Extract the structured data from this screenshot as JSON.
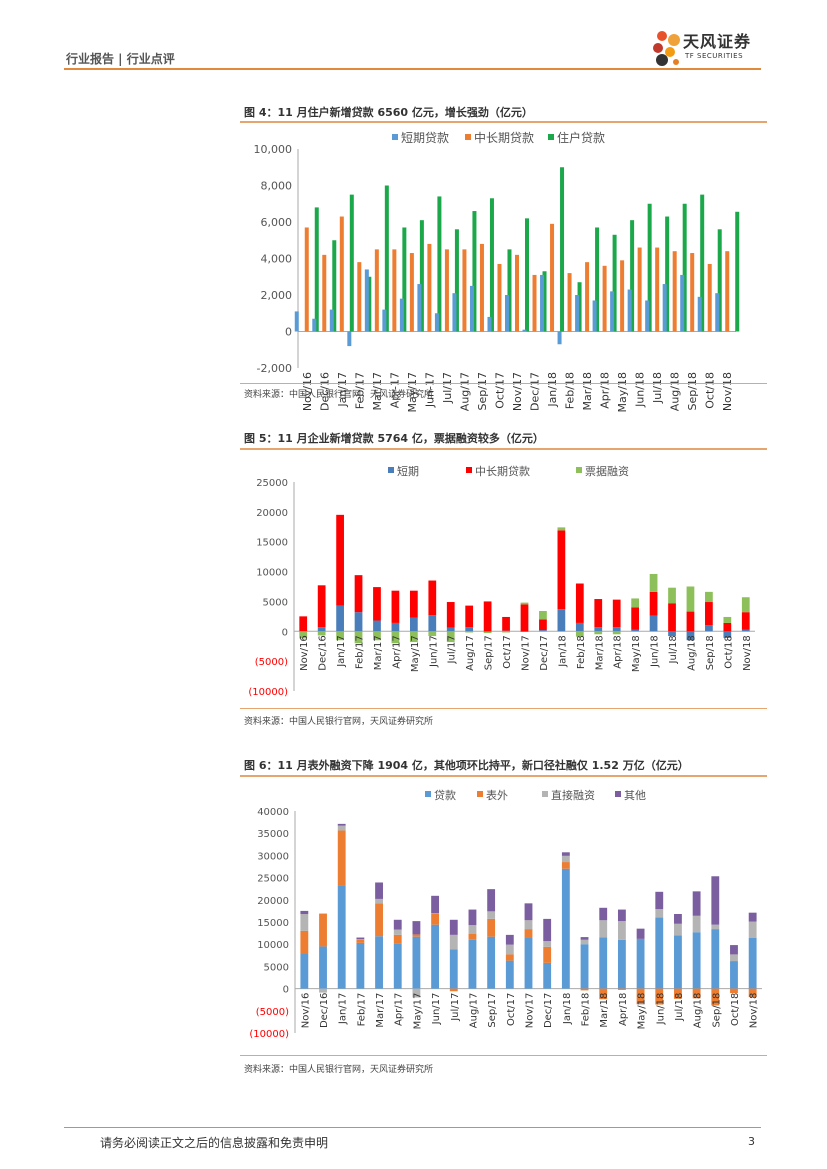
{
  "header": {
    "left_text": "行业报告 | 行业点评",
    "logo_cn": "天风证券",
    "logo_en": "TF SECURITIES",
    "logo_icon": "flower-logo-icon"
  },
  "colors": {
    "accent": "#e08a3c",
    "blue": "#5b9bd5",
    "orange": "#ed7d31",
    "green": "#1aa84a",
    "red": "#ff0000",
    "lightgreen": "#8dbf5a",
    "gray": "#b4b4b4",
    "purple": "#7b5e9f"
  },
  "figures": [
    {
      "title": "图 4：11 月住户新增贷款 6560 亿元，增长强劲（亿元）",
      "source": "资料来源：中国人民银行官网，天风证券研究所"
    },
    {
      "title": "图 5：11 月企业新增贷款 5764 亿，票据融资较多（亿元）",
      "source": "资料来源：中国人民银行官网，天风证券研究所"
    },
    {
      "title": "图 6：11 月表外融资下降 1904 亿，其他项环比持平，新口径社融仅 1.52 万亿（亿元）",
      "source": "资料来源：中国人民银行官网，天风证券研究所"
    }
  ],
  "footer": {
    "disclaimer": "请务必阅读正文之后的信息披露和免责申明",
    "page": "3"
  },
  "chart_data": [
    {
      "type": "bar",
      "title": "图 4：11 月住户新增贷款 6560 亿元，增长强劲（亿元）",
      "categories": [
        "Nov/16",
        "Dec/16",
        "Jan/17",
        "Feb/17",
        "Mar/17",
        "Apr-17",
        "May/17",
        "Jun-17",
        "Jul/17",
        "Aug/17",
        "Sep/17",
        "Oct/17",
        "Nov/17",
        "Dec/17",
        "Jan/18",
        "Feb/18",
        "Mar/18",
        "Apr/18",
        "May/18",
        "Jun/18",
        "Jul/18",
        "Aug/18",
        "Sep/18",
        "Oct/18",
        "Nov/18"
      ],
      "series": [
        {
          "name": "短期贷款",
          "values": [
            1100,
            700,
            1200,
            -800,
            3400,
            1200,
            1800,
            2600,
            1000,
            2100,
            2500,
            800,
            2000,
            100,
            3100,
            -700,
            2000,
            1700,
            2200,
            2300,
            1700,
            2600,
            3100,
            1900,
            2100
          ]
        },
        {
          "name": "中长期贷款",
          "values": [
            5700,
            4200,
            6300,
            3800,
            4500,
            4500,
            4300,
            4800,
            4500,
            4500,
            4800,
            3700,
            4200,
            3100,
            5900,
            3200,
            3800,
            3600,
            3900,
            4600,
            4600,
            4400,
            4300,
            3700,
            4400
          ]
        },
        {
          "name": "住户贷款",
          "values": [
            6800,
            5000,
            7500,
            3000,
            8000,
            5700,
            6100,
            7400,
            5600,
            6600,
            7300,
            4500,
            6200,
            3300,
            9000,
            2700,
            5700,
            5300,
            6100,
            7000,
            6300,
            7000,
            7500,
            5600,
            6560
          ]
        }
      ],
      "ylim": [
        -2000,
        10000
      ],
      "yticks": [
        "10,000",
        "8,000",
        "6,000",
        "4,000",
        "2,000",
        "0",
        "-2,000"
      ],
      "legend": "top-center"
    },
    {
      "type": "bar",
      "title": "图 5：11 月企业新增贷款 5764 亿，票据融资较多（亿元）",
      "categories": [
        "Nov/16",
        "Dec/16",
        "Jan/17",
        "Feb/17",
        "Mar/17",
        "Apr/17",
        "May/17",
        "Jun/17",
        "Jul/17",
        "Aug/17",
        "Sep/17",
        "Oct/17",
        "Nov/17",
        "Dec/17",
        "Jan/18",
        "Feb/18",
        "Mar/18",
        "Apr/18",
        "May/18",
        "Jun/18",
        "Jul/18",
        "Aug/18",
        "Sep/18",
        "Oct/18",
        "Nov/18"
      ],
      "series": [
        {
          "name": "短期",
          "values": [
            0,
            700,
            4300,
            3200,
            1800,
            1400,
            2300,
            2700,
            600,
            700,
            -100,
            100,
            -100,
            200,
            3700,
            1400,
            700,
            700,
            300,
            2600,
            -800,
            -1500,
            1000,
            -1100,
            300
          ]
        },
        {
          "name": "中长期贷款",
          "values": [
            2500,
            7000,
            15200,
            6200,
            5600,
            5400,
            4500,
            5800,
            4300,
            3600,
            5000,
            2300,
            4500,
            1800,
            13200,
            6600,
            4700,
            4600,
            3700,
            4000,
            4700,
            3300,
            3900,
            1400,
            2900
          ]
        },
        {
          "name": "票据融资",
          "values": [
            -1200,
            -700,
            -1500,
            -2000,
            -1500,
            -2000,
            -1800,
            -800,
            -1800,
            -200,
            -200,
            -200,
            300,
            1400,
            500,
            -900,
            -500,
            -500,
            1500,
            3000,
            2600,
            4200,
            1700,
            1000,
            2500
          ]
        }
      ],
      "ylim": [
        -10000,
        25000
      ],
      "yticks": [
        "25000",
        "20000",
        "15000",
        "10000",
        "5000",
        "0",
        "(5000)",
        "(10000)"
      ],
      "legend": "top-center"
    },
    {
      "type": "bar",
      "title": "图 6：11 月表外融资下降 1904 亿，其他项环比持平，新口径社融仅 1.52 万亿（亿元）",
      "categories": [
        "Nov/16",
        "Dec/16",
        "Jan/17",
        "Feb/17",
        "Mar/17",
        "Apr/17",
        "May/17",
        "Jun/17",
        "Jul/17",
        "Aug/17",
        "Sep/17",
        "Oct/17",
        "Nov/17",
        "Dec/17",
        "Jan/18",
        "Feb/18",
        "Mar/18",
        "Apr/18",
        "May/18",
        "Jun/18",
        "Jul/18",
        "Aug/18",
        "Sep/18",
        "Oct/18",
        "Nov/18"
      ],
      "series": [
        {
          "name": "贷款",
          "values": [
            8000,
            9500,
            23200,
            10300,
            11800,
            10200,
            11700,
            14400,
            8800,
            11000,
            11700,
            6300,
            11400,
            5800,
            27000,
            10000,
            11500,
            11000,
            11200,
            16000,
            12000,
            12700,
            13400,
            6200,
            11400
          ]
        },
        {
          "name": "表外",
          "values": [
            5000,
            7400,
            12400,
            700,
            7400,
            1900,
            500,
            2500,
            -600,
            1300,
            4000,
            1400,
            2000,
            3600,
            1500,
            -400,
            -2400,
            -300,
            -3500,
            -3600,
            -2300,
            -2200,
            -3800,
            -1000,
            -1900
          ]
        },
        {
          "name": "直接融资",
          "values": [
            3800,
            -900,
            1100,
            100,
            1000,
            1200,
            -2000,
            100,
            3300,
            2000,
            1700,
            2200,
            2000,
            1300,
            1400,
            1000,
            3900,
            4200,
            -100,
            1900,
            2600,
            3700,
            1000,
            1500,
            3700
          ]
        },
        {
          "name": "其他",
          "values": [
            700,
            0,
            400,
            400,
            3700,
            2200,
            3000,
            3900,
            3400,
            3500,
            5000,
            2200,
            3800,
            5000,
            800,
            600,
            2800,
            2600,
            2300,
            3900,
            2200,
            5500,
            10900,
            2100,
            2000
          ]
        }
      ],
      "ylim": [
        -10000,
        40000
      ],
      "yticks": [
        "40000",
        "35000",
        "30000",
        "25000",
        "20000",
        "15000",
        "10000",
        "5000",
        "0",
        "(5000)",
        "(10000)"
      ],
      "legend": "top-center"
    }
  ]
}
